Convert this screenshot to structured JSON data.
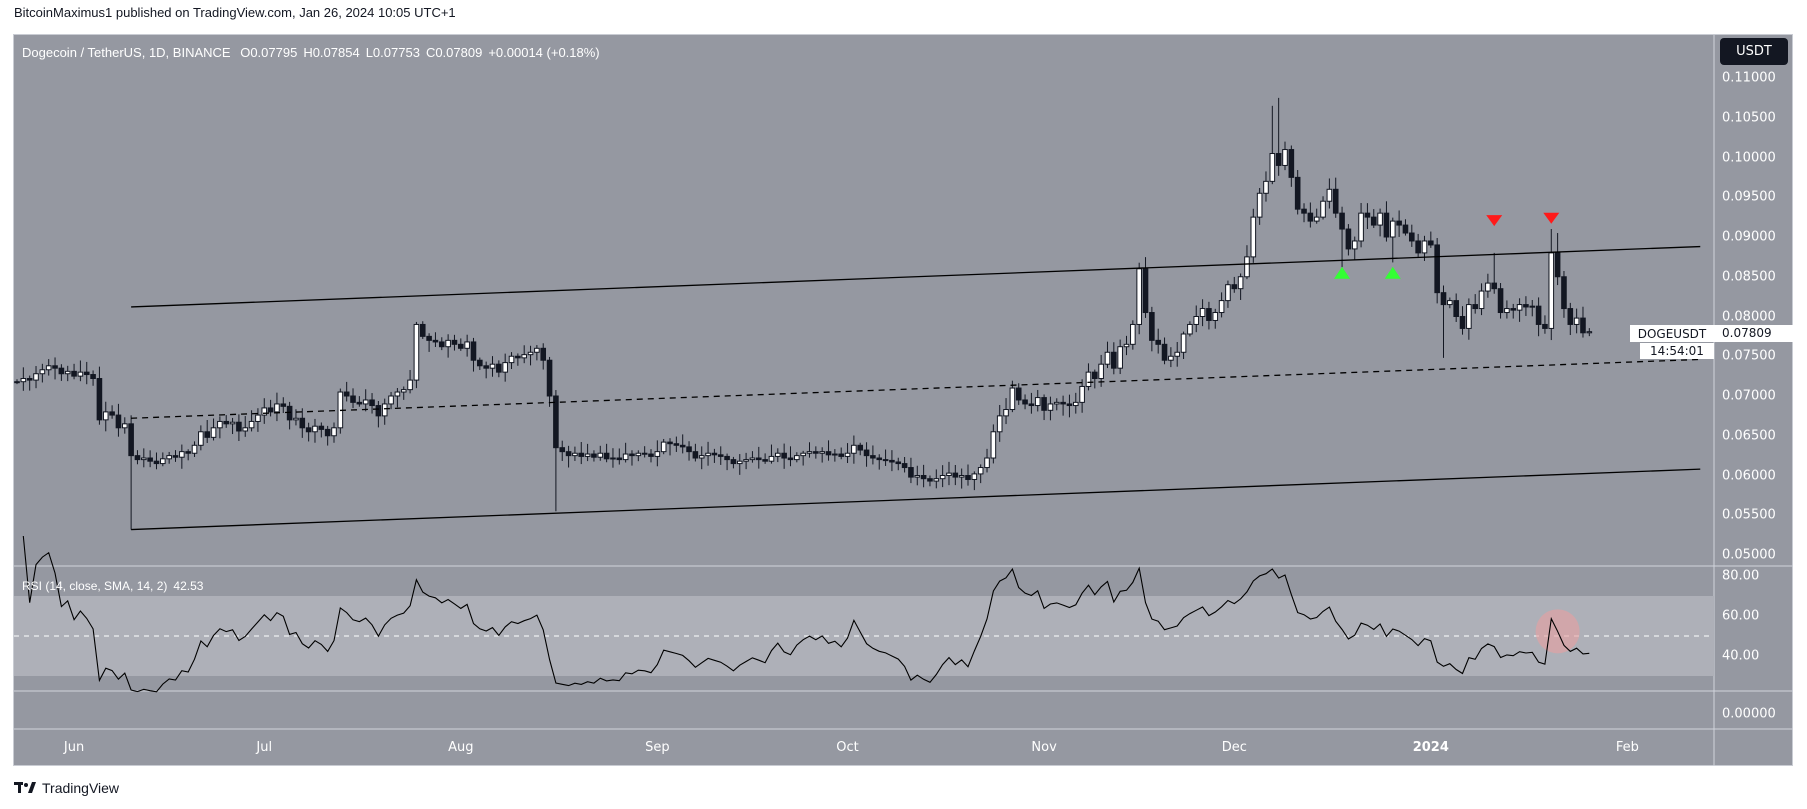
{
  "header": {
    "published": "BitcoinMaximus1 published on TradingView.com, Jan 26, 2024 10:05 UTC+1"
  },
  "legend": {
    "symbol": "Dogecoin / TetherUS, 1D, BINANCE",
    "open": "O0.07795",
    "high": "H0.07854",
    "low": "L0.07753",
    "close": "C0.07809",
    "change": "+0.00014 (+0.18%)"
  },
  "rsi_legend": {
    "label": "RSI (14, close, SMA, 14, 2)",
    "value": "42.53"
  },
  "currency_button": "USDT",
  "price_label": {
    "symbol": "DOGEUSDT",
    "price": "0.07809",
    "countdown": "14:54:01"
  },
  "footer": {
    "brand": "TradingView"
  },
  "colors": {
    "background": "#9598a1",
    "up": "#ffffff",
    "down": "#131722",
    "rsi_band": "#aeb0b8",
    "support_marker": "#33ff33",
    "resistance_marker": "#ff1a1a",
    "rsi_highlight": "#e8a0a0"
  },
  "chart_data": [
    {
      "type": "candlestick",
      "title": "Dogecoin / TetherUS, 1D, BINANCE",
      "start_date": "2023-05-23",
      "end_date": "2024-01-26",
      "ylim": [
        0.05,
        0.11
      ],
      "price_ticks": [
        "0.11000",
        "0.10500",
        "0.10000",
        "0.09500",
        "0.09000",
        "0.08500",
        "0.08000",
        "0.07500",
        "0.07000",
        "0.06500",
        "0.06000",
        "0.05500",
        "0.05000"
      ],
      "time_ticks": [
        {
          "label": "Jun",
          "i": 9
        },
        {
          "label": "Jul",
          "i": 39
        },
        {
          "label": "Aug",
          "i": 70
        },
        {
          "label": "Sep",
          "i": 101
        },
        {
          "label": "Oct",
          "i": 131
        },
        {
          "label": "Nov",
          "i": 162
        },
        {
          "label": "Dec",
          "i": 192
        },
        {
          "label": "2024",
          "i": 223
        },
        {
          "label": "Feb",
          "i": 254
        }
      ],
      "closes": [
        0.0718,
        0.0722,
        0.072,
        0.0728,
        0.0733,
        0.0738,
        0.0735,
        0.0728,
        0.0731,
        0.0725,
        0.073,
        0.0727,
        0.0722,
        0.067,
        0.068,
        0.0676,
        0.066,
        0.0665,
        0.0625,
        0.062,
        0.0622,
        0.0618,
        0.0615,
        0.0621,
        0.0625,
        0.0623,
        0.063,
        0.0628,
        0.0638,
        0.0655,
        0.0648,
        0.066,
        0.0668,
        0.0665,
        0.0667,
        0.0656,
        0.066,
        0.0668,
        0.0676,
        0.0685,
        0.068,
        0.069,
        0.0687,
        0.067,
        0.0672,
        0.066,
        0.0655,
        0.0662,
        0.0658,
        0.065,
        0.066,
        0.0705,
        0.07,
        0.0692,
        0.069,
        0.0695,
        0.0688,
        0.0675,
        0.069,
        0.07,
        0.0705,
        0.0708,
        0.072,
        0.079,
        0.0775,
        0.077,
        0.0768,
        0.0762,
        0.077,
        0.0765,
        0.076,
        0.0768,
        0.0745,
        0.0738,
        0.0735,
        0.074,
        0.073,
        0.0742,
        0.075,
        0.0748,
        0.0752,
        0.0755,
        0.076,
        0.0745,
        0.07,
        0.0635,
        0.063,
        0.0625,
        0.0628,
        0.0624,
        0.0627,
        0.0623,
        0.0628,
        0.0621,
        0.0622,
        0.062,
        0.0627,
        0.0625,
        0.0628,
        0.0627,
        0.0624,
        0.063,
        0.0642,
        0.064,
        0.0638,
        0.0636,
        0.063,
        0.0622,
        0.0625,
        0.0628,
        0.0626,
        0.0624,
        0.062,
        0.0615,
        0.0618,
        0.062,
        0.0622,
        0.062,
        0.0618,
        0.0624,
        0.0628,
        0.0622,
        0.062,
        0.0625,
        0.0628,
        0.063,
        0.0628,
        0.063,
        0.0626,
        0.0627,
        0.0624,
        0.0628,
        0.0638,
        0.0632,
        0.0625,
        0.0622,
        0.062,
        0.0619,
        0.0617,
        0.0615,
        0.061,
        0.0598,
        0.06,
        0.0596,
        0.0593,
        0.0596,
        0.06,
        0.0603,
        0.0598,
        0.06,
        0.0595,
        0.0602,
        0.061,
        0.0622,
        0.0655,
        0.0675,
        0.0683,
        0.071,
        0.0695,
        0.069,
        0.0688,
        0.0698,
        0.0682,
        0.069,
        0.0692,
        0.069,
        0.0688,
        0.0692,
        0.0712,
        0.073,
        0.0722,
        0.074,
        0.0755,
        0.0735,
        0.0762,
        0.0765,
        0.079,
        0.086,
        0.0805,
        0.077,
        0.0765,
        0.0745,
        0.075,
        0.0755,
        0.0778,
        0.079,
        0.08,
        0.081,
        0.0795,
        0.0805,
        0.082,
        0.084,
        0.0835,
        0.085,
        0.0875,
        0.0925,
        0.0955,
        0.097,
        0.1005,
        0.099,
        0.101,
        0.0975,
        0.0935,
        0.093,
        0.092,
        0.0925,
        0.0945,
        0.096,
        0.093,
        0.091,
        0.0885,
        0.0895,
        0.093,
        0.0925,
        0.0915,
        0.093,
        0.09,
        0.092,
        0.0915,
        0.0905,
        0.0895,
        0.088,
        0.0895,
        0.089,
        0.083,
        0.0815,
        0.082,
        0.08,
        0.0785,
        0.0815,
        0.081,
        0.0832,
        0.0842,
        0.0835,
        0.0805,
        0.081,
        0.0808,
        0.0815,
        0.0812,
        0.0813,
        0.079,
        0.0785,
        0.088,
        0.085,
        0.081,
        0.079,
        0.0798,
        0.07795,
        0.07809
      ],
      "wick_overrides": [
        {
          "i": 18,
          "l": 0.0532
        },
        {
          "i": 85,
          "l": 0.0555
        },
        {
          "i": 199,
          "h": 0.1075
        },
        {
          "i": 198,
          "h": 0.1065
        },
        {
          "i": 209,
          "l": 0.0862
        },
        {
          "i": 217,
          "l": 0.0868
        },
        {
          "i": 225,
          "l": 0.0748
        },
        {
          "i": 233,
          "h": 0.088
        },
        {
          "i": 242,
          "h": 0.091
        },
        {
          "i": 243,
          "h": 0.0905
        },
        {
          "i": 248,
          "h": 0.07854,
          "l": 0.07753
        }
      ],
      "trendlines": [
        {
          "name": "channel-upper",
          "style": "solid",
          "i1": 18,
          "p1": 0.0812,
          "i2": 265.5,
          "p2": 0.0888
        },
        {
          "name": "channel-mid",
          "style": "dashed",
          "i1": 18,
          "p1": 0.0672,
          "i2": 265.5,
          "p2": 0.0746
        },
        {
          "name": "channel-lower",
          "style": "solid",
          "i1": 18,
          "p1": 0.0532,
          "i2": 265.5,
          "p2": 0.0608
        }
      ],
      "markers": [
        {
          "type": "support",
          "i": 209,
          "price": 0.0855
        },
        {
          "type": "support",
          "i": 217,
          "price": 0.0855
        },
        {
          "type": "resistance",
          "i": 233,
          "price": 0.092
        },
        {
          "type": "resistance",
          "i": 242,
          "price": 0.0923
        }
      ]
    },
    {
      "type": "line",
      "title": "RSI (14, close, SMA, 14, 2)",
      "ylim": [
        0,
        100
      ],
      "ticks": [
        "80.00",
        "60.00",
        "40.00"
      ],
      "extra_pane_tick": "0.00000",
      "band": [
        30,
        70
      ],
      "midline": 50,
      "highlight_index": 243
    }
  ]
}
